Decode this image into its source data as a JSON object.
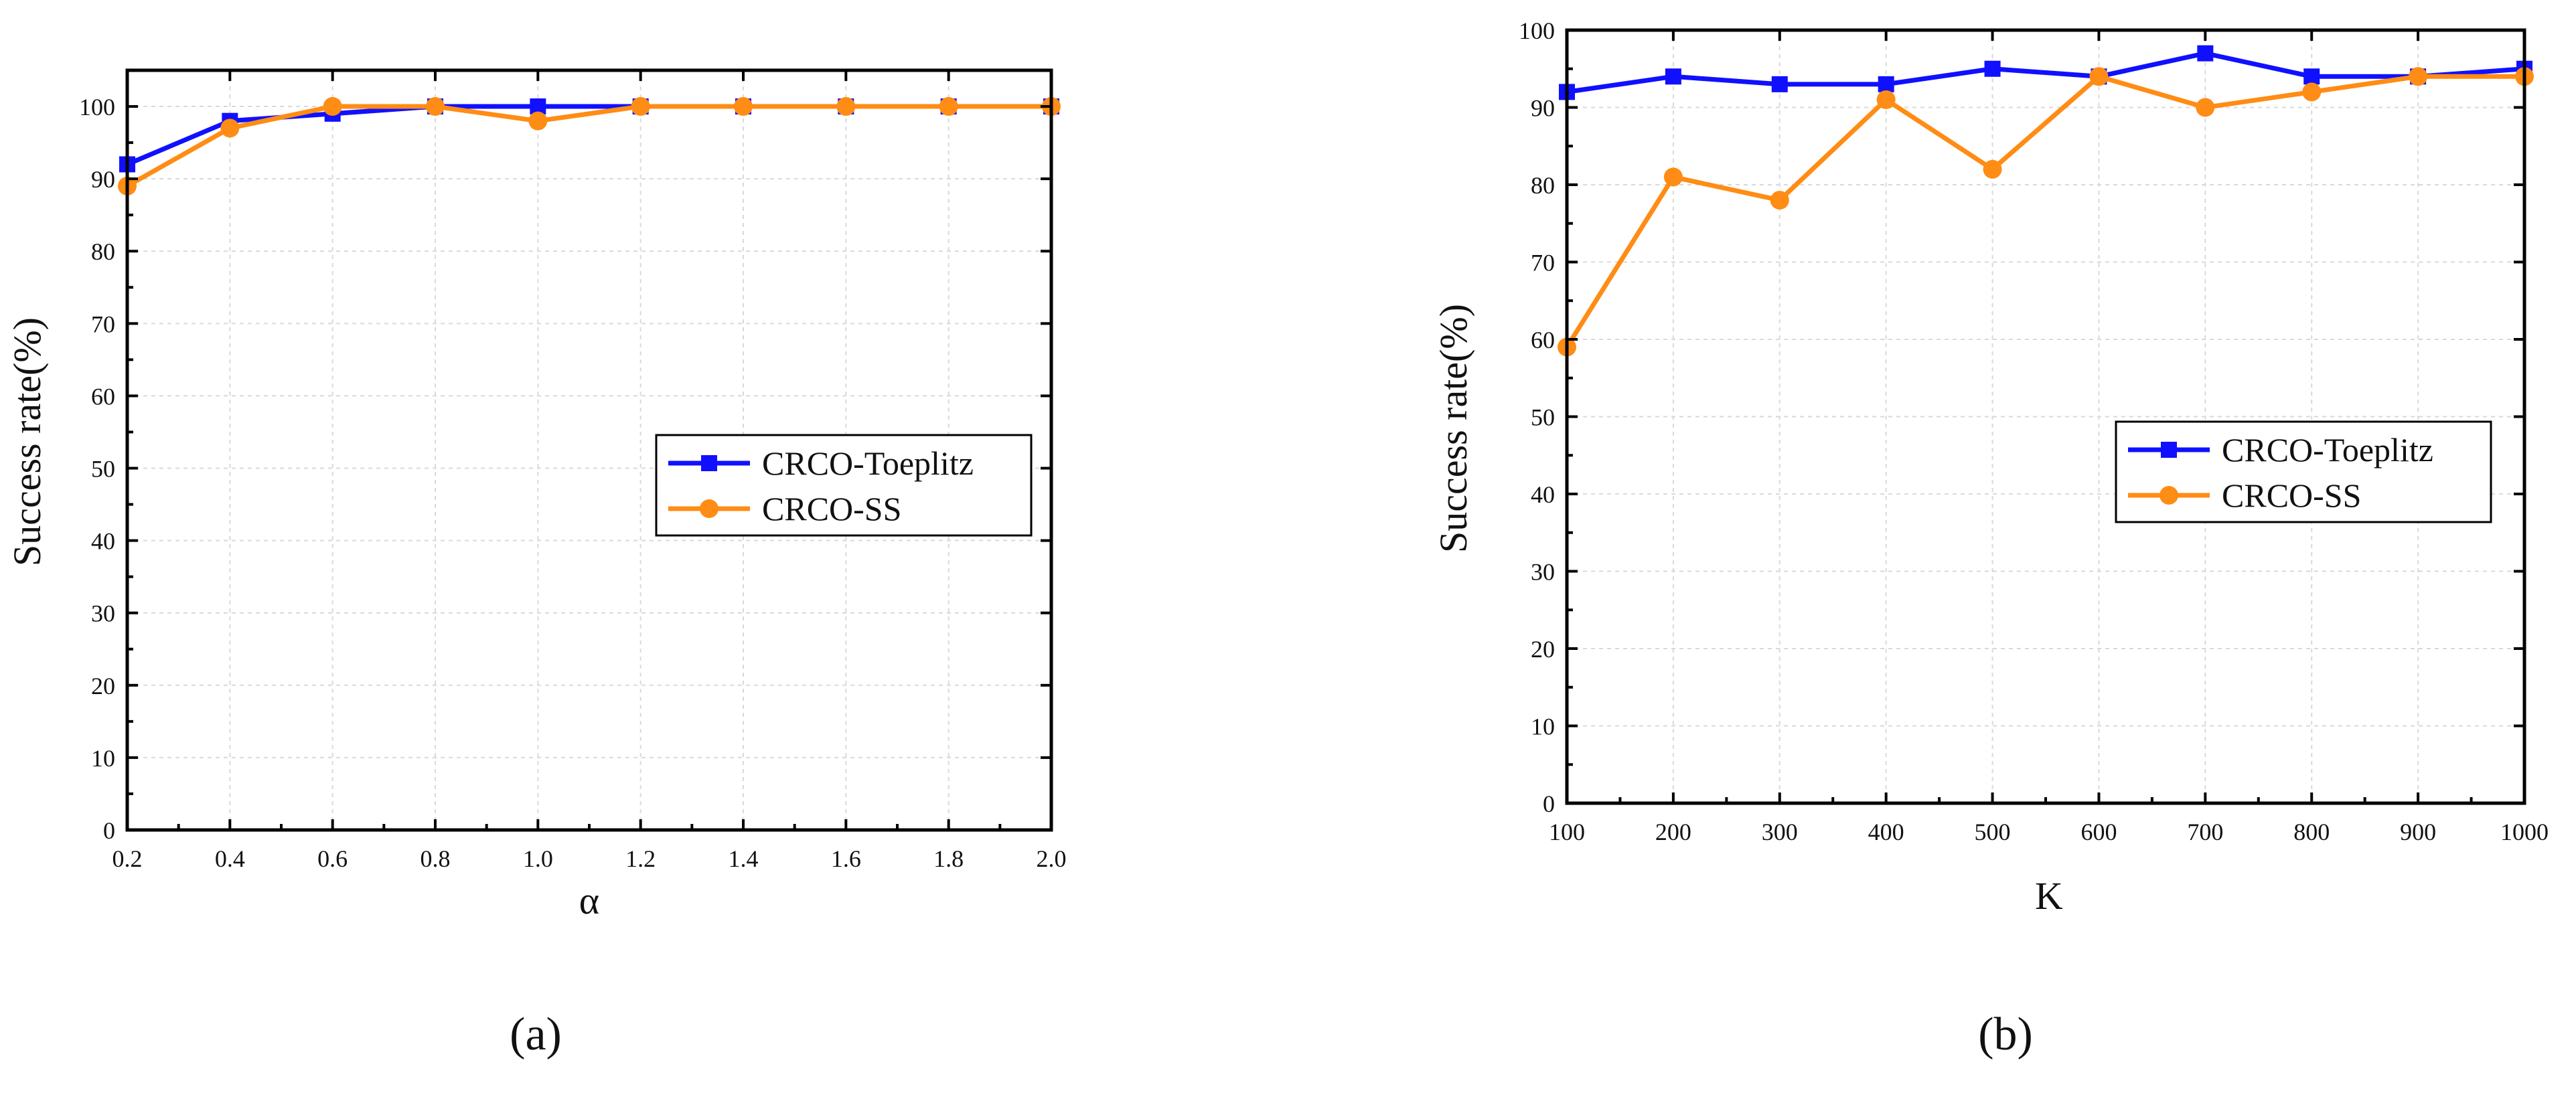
{
  "chart_data": [
    {
      "type": "line",
      "panel": "a",
      "caption": "(a)",
      "xlabel": "α",
      "ylabel": "Success rate(%)",
      "xlim": [
        0.2,
        2.0
      ],
      "ylim": [
        0,
        105
      ],
      "xticks": [
        "0.2",
        "0.4",
        "0.6",
        "0.8",
        "1.0",
        "1.2",
        "1.4",
        "1.6",
        "1.8",
        "2.0"
      ],
      "yticks": [
        "0",
        "10",
        "20",
        "30",
        "40",
        "50",
        "60",
        "70",
        "80",
        "90",
        "100"
      ],
      "legend_position": "right-middle",
      "x": [
        0.2,
        0.4,
        0.6,
        0.8,
        1.0,
        1.2,
        1.4,
        1.6,
        1.8,
        2.0
      ],
      "series": [
        {
          "name": "CRCO-Toeplitz",
          "color": "#1010ff",
          "marker": "square",
          "values": [
            92,
            98,
            99,
            100,
            100,
            100,
            100,
            100,
            100,
            100
          ]
        },
        {
          "name": "CRCO-SS",
          "color": "#ff8c14",
          "marker": "circle",
          "values": [
            89,
            97,
            100,
            100,
            98,
            100,
            100,
            100,
            100,
            100
          ]
        }
      ]
    },
    {
      "type": "line",
      "panel": "b",
      "caption": "(b)",
      "xlabel": "K",
      "ylabel": "Success rate(%)",
      "xlim": [
        100,
        1000
      ],
      "ylim": [
        0,
        100
      ],
      "xticks": [
        "100",
        "200",
        "300",
        "400",
        "500",
        "600",
        "700",
        "800",
        "900",
        "1000"
      ],
      "yticks": [
        "0",
        "10",
        "20",
        "30",
        "40",
        "50",
        "60",
        "70",
        "80",
        "90",
        "100"
      ],
      "legend_position": "right-middle",
      "x": [
        100,
        200,
        300,
        400,
        500,
        600,
        700,
        800,
        900,
        1000
      ],
      "series": [
        {
          "name": "CRCO-Toeplitz",
          "color": "#1010ff",
          "marker": "square",
          "values": [
            92,
            94,
            93,
            93,
            95,
            94,
            97,
            94,
            94,
            95
          ]
        },
        {
          "name": "CRCO-SS",
          "color": "#ff8c14",
          "marker": "circle",
          "values": [
            59,
            81,
            78,
            91,
            82,
            94,
            90,
            92,
            94,
            94
          ]
        }
      ]
    }
  ]
}
